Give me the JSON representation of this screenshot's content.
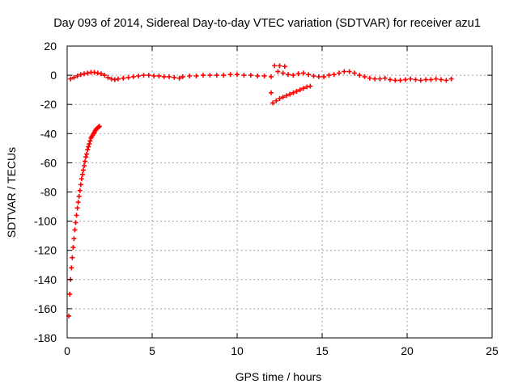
{
  "chart_data": {
    "type": "scatter",
    "title": "Day 093 of 2014, Sidereal Day-to-day VTEC variation (SDTVAR) for receiver azu1",
    "xlabel": "GPS time / hours",
    "ylabel": "SDTVAR / TECUs",
    "xlim": [
      0,
      25
    ],
    "ylim": [
      -180,
      20
    ],
    "xticks": [
      "0",
      "5",
      "10",
      "15",
      "20",
      "25"
    ],
    "yticks": [
      "20",
      "0",
      "-20",
      "-40",
      "-60",
      "-80",
      "-100",
      "-120",
      "-140",
      "-160",
      "-180"
    ],
    "grid": true,
    "marker": "+",
    "color": "#ff0000",
    "series": [
      {
        "x": [
          0.1,
          0.15,
          0.2,
          0.25,
          0.3,
          0.35,
          0.4,
          0.45,
          0.5,
          0.55,
          0.6,
          0.65,
          0.7,
          0.75,
          0.8,
          0.85,
          0.9,
          0.95,
          1.0,
          1.05,
          1.1,
          1.15,
          1.2,
          1.25,
          1.3,
          1.35,
          1.4,
          1.45,
          1.5,
          1.55,
          1.6,
          1.65,
          1.7,
          1.75,
          1.8,
          1.85,
          1.9
        ],
        "y": [
          -165,
          -150,
          -140,
          -132,
          -125,
          -118,
          -112,
          -106,
          -101,
          -96,
          -91,
          -87,
          -83,
          -79,
          -75,
          -71,
          -68,
          -65,
          -62,
          -59,
          -56,
          -54,
          -51,
          -49,
          -47,
          -45,
          -43,
          -42,
          -41,
          -40,
          -39,
          -38,
          -37,
          -36.5,
          -36,
          -35.5,
          -35
        ]
      },
      {
        "x": [
          0.2,
          0.4,
          0.6,
          0.8,
          1.0,
          1.2,
          1.4,
          1.6,
          1.8,
          2.0,
          2.2,
          2.4,
          2.6,
          2.8,
          3.0,
          3.3,
          3.6,
          3.9,
          4.2,
          4.5,
          4.8,
          5.1,
          5.4,
          5.7,
          6.0,
          6.3,
          6.6
        ],
        "y": [
          -2.5,
          -1.5,
          -0.5,
          0.5,
          1.0,
          1.5,
          2.0,
          2.0,
          1.5,
          1.0,
          0,
          -1.5,
          -2.5,
          -3.0,
          -2.5,
          -2.0,
          -1.5,
          -1.0,
          -0.5,
          0,
          0,
          -0.5,
          -0.5,
          -1.0,
          -1.0,
          -1.5,
          -2.0
        ]
      },
      {
        "x": [
          6.8,
          7.2,
          7.6,
          8.0,
          8.4,
          8.8,
          9.2,
          9.6,
          10.0,
          10.4,
          10.8,
          11.2,
          11.6,
          12.0
        ],
        "y": [
          -1.0,
          -0.5,
          -0.5,
          0,
          0,
          0,
          0,
          0.5,
          0.5,
          0,
          0,
          -0.5,
          -0.5,
          -1.0
        ]
      },
      {
        "x": [
          12.1,
          12.3,
          12.5,
          12.7,
          12.9,
          13.1,
          13.3,
          13.5,
          13.7,
          13.9,
          14.1,
          14.3
        ],
        "y": [
          -19,
          -17.5,
          -16,
          -15,
          -14,
          -13,
          -12,
          -11,
          -10,
          -9,
          -8,
          -7.5
        ]
      },
      {
        "x": [
          12.2,
          12.5,
          12.8
        ],
        "y": [
          6.5,
          6.5,
          6.0
        ]
      },
      {
        "x": [
          12.4,
          12.7,
          13.0,
          13.3,
          13.6,
          13.9,
          14.2,
          14.5,
          14.8,
          15.1,
          15.4,
          15.7,
          16.0,
          16.3,
          16.6,
          16.9,
          17.2,
          17.5,
          17.8,
          18.1,
          18.4,
          18.7,
          19.0,
          19.3,
          19.6,
          19.9,
          20.2,
          20.5,
          20.8,
          21.1,
          21.4,
          21.7,
          22.0,
          22.3,
          22.6
        ],
        "y": [
          2.5,
          1.5,
          0.5,
          0,
          1.0,
          1.5,
          0.5,
          -0.5,
          -1.0,
          -1.0,
          0,
          0.5,
          1.5,
          2.5,
          2.5,
          1.5,
          0,
          -1.0,
          -2.0,
          -2.5,
          -2.5,
          -2.0,
          -3.0,
          -3.5,
          -3.5,
          -3.0,
          -2.5,
          -3.0,
          -3.5,
          -3.0,
          -3.0,
          -2.5,
          -3.0,
          -3.5,
          -2.5
        ]
      },
      {
        "x": [
          12.0
        ],
        "y": [
          -12
        ]
      }
    ]
  }
}
